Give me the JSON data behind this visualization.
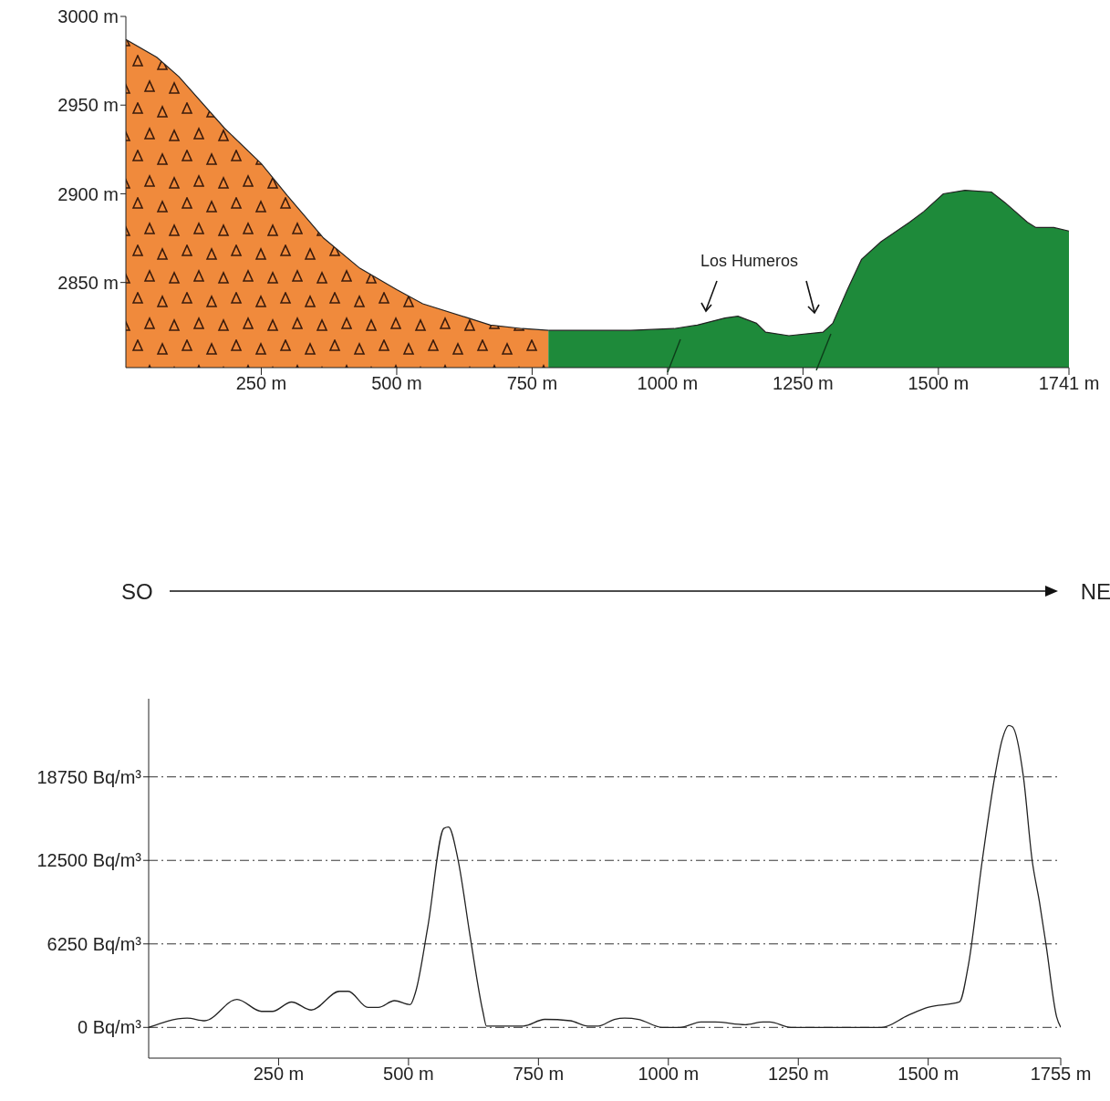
{
  "chart_data": [
    {
      "type": "area",
      "annotations": [
        "Los Humeros"
      ],
      "xlim": [
        0,
        1741
      ],
      "ylim": [
        2802,
        3000
      ],
      "xticks": [
        {
          "value": 250,
          "label": "250 m"
        },
        {
          "value": 500,
          "label": "500 m"
        },
        {
          "value": 750,
          "label": "750 m"
        },
        {
          "value": 1000,
          "label": "1000 m"
        },
        {
          "value": 1250,
          "label": "1250 m"
        },
        {
          "value": 1500,
          "label": "1500 m"
        },
        {
          "value": 1741,
          "label": "1741 m"
        }
      ],
      "yticks": [
        {
          "value": 2850,
          "label": "2850 m"
        },
        {
          "value": 2900,
          "label": "2900 m"
        },
        {
          "value": 2950,
          "label": "2950 m"
        },
        {
          "value": 3000,
          "label": "3000 m"
        }
      ],
      "series": [
        {
          "color": "#f08a3c",
          "x": [
            0,
            57,
            98,
            182,
            250,
            298,
            365,
            432,
            500,
            548,
            632,
            673,
            732,
            780
          ],
          "values": [
            2987,
            2977,
            2966,
            2937,
            2917,
            2899,
            2875,
            2858,
            2846,
            2838,
            2830,
            2826,
            2824,
            2823
          ]
        },
        {
          "color": "#1e8a3a",
          "x": [
            780,
            932,
            1012,
            1055,
            1106,
            1130,
            1164,
            1181,
            1224,
            1287,
            1305,
            1332,
            1358,
            1394,
            1447,
            1473,
            1509,
            1549,
            1598,
            1623,
            1664,
            1680,
            1713,
            1741
          ],
          "values": [
            2823,
            2823,
            2824,
            2826,
            2830,
            2831,
            2827,
            2822,
            2820,
            2822,
            2827,
            2846,
            2863,
            2873,
            2884,
            2890,
            2900,
            2902,
            2901,
            2895,
            2884,
            2881,
            2881,
            2879
          ]
        }
      ]
    },
    {
      "type": "line",
      "annotations": [
        "SO",
        "NE"
      ],
      "xlim": [
        0,
        1755
      ],
      "ylim": [
        -2300,
        24600
      ],
      "grid": "y",
      "marker": "none",
      "line_style": "solid",
      "xticks": [
        {
          "value": 250,
          "label": "250 m"
        },
        {
          "value": 500,
          "label": "500 m"
        },
        {
          "value": 750,
          "label": "750 m"
        },
        {
          "value": 1000,
          "label": "1000 m"
        },
        {
          "value": 1250,
          "label": "1250 m"
        },
        {
          "value": 1500,
          "label": "1500 m"
        },
        {
          "value": 1755,
          "label": "1755 m"
        }
      ],
      "yticks": [
        {
          "value": 0,
          "label": "0 Bq/m³"
        },
        {
          "value": 6250,
          "label": "6250 Bq/m³"
        },
        {
          "value": 12500,
          "label": "12500 Bq/m³"
        },
        {
          "value": 18750,
          "label": "18750 Bq/m³"
        }
      ],
      "series": [
        {
          "color": "#222222",
          "x": [
            0,
            74,
            108,
            170,
            217,
            238,
            275,
            313,
            367,
            384,
            422,
            442,
            473,
            503,
            514,
            537,
            568,
            577,
            595,
            619,
            643,
            650,
            721,
            762,
            811,
            845,
            865,
            896,
            916,
            943,
            988,
            1022,
            1063,
            1090,
            1148,
            1182,
            1195,
            1236,
            1410,
            1461,
            1499,
            1560,
            1577,
            1604,
            1628,
            1642,
            1655,
            1662,
            1683,
            1700,
            1714,
            1727,
            1747,
            1755
          ],
          "values": [
            0,
            700,
            500,
            2100,
            1200,
            1200,
            1900,
            1300,
            2700,
            2700,
            1500,
            1500,
            2000,
            1700,
            2700,
            7500,
            14900,
            15000,
            12600,
            6700,
            1200,
            100,
            100,
            600,
            500,
            100,
            100,
            600,
            700,
            600,
            0,
            0,
            400,
            400,
            200,
            400,
            400,
            0,
            0,
            900,
            1500,
            1900,
            4600,
            12500,
            18750,
            21500,
            22600,
            22500,
            18800,
            12500,
            9400,
            6100,
            800,
            0
          ]
        }
      ]
    }
  ]
}
